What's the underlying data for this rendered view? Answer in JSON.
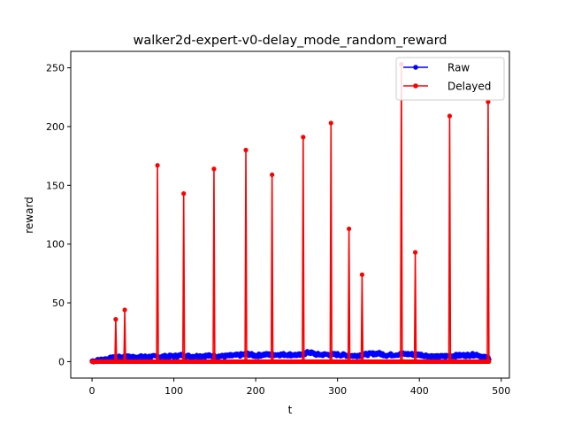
{
  "chart_data": {
    "type": "line",
    "title": "walker2d-expert-v0-delay_mode_random_reward",
    "xlabel": "t",
    "ylabel": "reward",
    "xlim": [
      -26,
      510
    ],
    "ylim": [
      -14,
      264
    ],
    "xticks": [
      0,
      100,
      200,
      300,
      400,
      500
    ],
    "yticks": [
      0,
      50,
      100,
      150,
      200,
      250
    ],
    "grid": false,
    "legend": {
      "position": "top-right",
      "entries": [
        "Raw",
        "Delayed"
      ]
    },
    "series": [
      {
        "name": "Raw",
        "color": "#0000ff",
        "marker": "dot",
        "x_range": [
          0,
          485
        ],
        "profile": [
          [
            0,
            0.5
          ],
          [
            5,
            0.8
          ],
          [
            10,
            1.5
          ],
          [
            20,
            2.5
          ],
          [
            30,
            3.5
          ],
          [
            40,
            4.0
          ],
          [
            60,
            4.0
          ],
          [
            80,
            4.2
          ],
          [
            100,
            4.5
          ],
          [
            110,
            5.5
          ],
          [
            120,
            4.5
          ],
          [
            140,
            5.0
          ],
          [
            160,
            4.5
          ],
          [
            180,
            5.5
          ],
          [
            190,
            6.5
          ],
          [
            200,
            5.0
          ],
          [
            210,
            6.0
          ],
          [
            240,
            6.0
          ],
          [
            255,
            5.5
          ],
          [
            265,
            8.0
          ],
          [
            275,
            6.0
          ],
          [
            300,
            6.0
          ],
          [
            320,
            5.0
          ],
          [
            340,
            6.5
          ],
          [
            350,
            7.0
          ],
          [
            360,
            5.5
          ],
          [
            380,
            6.5
          ],
          [
            400,
            6.0
          ],
          [
            420,
            4.0
          ],
          [
            440,
            5.0
          ],
          [
            460,
            5.5
          ],
          [
            470,
            6.0
          ],
          [
            480,
            3.5
          ],
          [
            485,
            3.0
          ]
        ],
        "jitter": 1.2
      },
      {
        "name": "Delayed",
        "color": "#ff0000",
        "marker": "dot",
        "x_range": [
          0,
          485
        ],
        "baseline": 0,
        "spikes": [
          {
            "t": 29,
            "value": 36
          },
          {
            "t": 40,
            "value": 44
          },
          {
            "t": 80,
            "value": 167
          },
          {
            "t": 112,
            "value": 143
          },
          {
            "t": 149,
            "value": 164
          },
          {
            "t": 188,
            "value": 180
          },
          {
            "t": 220,
            "value": 159
          },
          {
            "t": 258,
            "value": 191
          },
          {
            "t": 292,
            "value": 203
          },
          {
            "t": 314,
            "value": 113
          },
          {
            "t": 330,
            "value": 74
          },
          {
            "t": 378,
            "value": 253
          },
          {
            "t": 395,
            "value": 93
          },
          {
            "t": 437,
            "value": 209
          },
          {
            "t": 484,
            "value": 221
          }
        ]
      }
    ]
  }
}
